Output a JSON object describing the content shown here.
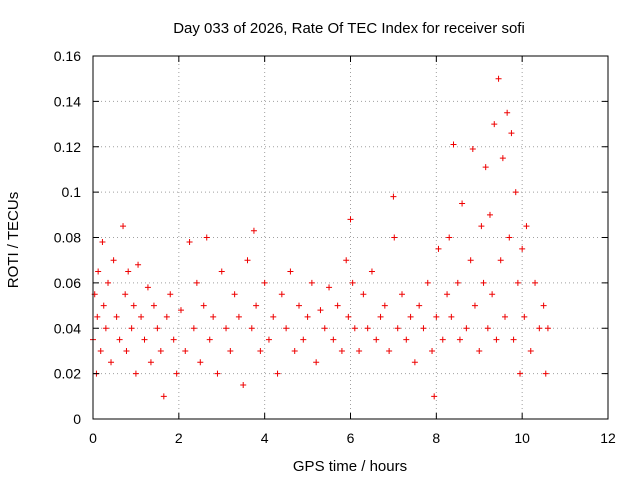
{
  "chart_data": {
    "type": "scatter",
    "title": "Day 033 of 2026, Rate Of TEC Index for receiver sofi",
    "xlabel": "GPS time / hours",
    "ylabel": "ROTI / TECUs",
    "xlim": [
      0,
      12
    ],
    "ylim": [
      0,
      0.16
    ],
    "xticks": [
      0,
      2,
      4,
      6,
      8,
      10,
      12
    ],
    "xtick_labels": [
      "0",
      "2",
      "4",
      "6",
      "8",
      "10",
      "12"
    ],
    "yticks": [
      0,
      0.02,
      0.04,
      0.06,
      0.08,
      0.1,
      0.12,
      0.14,
      0.16
    ],
    "ytick_labels": [
      "0",
      "0.02",
      "0.04",
      "0.06",
      "0.08",
      "0.1",
      "0.12",
      "0.14",
      "0.16"
    ],
    "grid": true,
    "marker": "plus",
    "color": "#ee0000",
    "series": [
      {
        "name": "ROTI",
        "x": [
          0.0,
          0.04,
          0.08,
          0.1,
          0.12,
          0.18,
          0.22,
          0.25,
          0.3,
          0.35,
          0.42,
          0.48,
          0.55,
          0.62,
          0.7,
          0.75,
          0.78,
          0.82,
          0.9,
          0.95,
          1.0,
          1.05,
          1.12,
          1.2,
          1.28,
          1.35,
          1.42,
          1.5,
          1.58,
          1.65,
          1.72,
          1.8,
          1.88,
          1.95,
          2.05,
          2.15,
          2.25,
          2.35,
          2.42,
          2.5,
          2.58,
          2.65,
          2.72,
          2.8,
          2.9,
          3.0,
          3.1,
          3.2,
          3.3,
          3.4,
          3.5,
          3.6,
          3.7,
          3.75,
          3.8,
          3.9,
          4.0,
          4.1,
          4.2,
          4.3,
          4.4,
          4.5,
          4.6,
          4.7,
          4.8,
          4.9,
          5.0,
          5.1,
          5.2,
          5.3,
          5.4,
          5.5,
          5.6,
          5.7,
          5.8,
          5.9,
          5.95,
          6.0,
          6.05,
          6.1,
          6.2,
          6.3,
          6.4,
          6.5,
          6.6,
          6.7,
          6.8,
          6.9,
          7.0,
          7.02,
          7.1,
          7.2,
          7.3,
          7.4,
          7.5,
          7.6,
          7.7,
          7.8,
          7.9,
          7.95,
          8.0,
          8.05,
          8.15,
          8.25,
          8.3,
          8.35,
          8.4,
          8.5,
          8.55,
          8.6,
          8.7,
          8.8,
          8.85,
          8.9,
          9.0,
          9.05,
          9.1,
          9.15,
          9.2,
          9.25,
          9.3,
          9.35,
          9.4,
          9.45,
          9.5,
          9.55,
          9.6,
          9.65,
          9.7,
          9.75,
          9.8,
          9.85,
          9.9,
          9.95,
          10.0,
          10.05,
          10.1,
          10.2,
          10.3,
          10.4,
          10.5,
          10.55,
          10.6
        ],
        "y": [
          0.035,
          0.055,
          0.02,
          0.045,
          0.065,
          0.03,
          0.078,
          0.05,
          0.04,
          0.06,
          0.025,
          0.07,
          0.045,
          0.035,
          0.085,
          0.055,
          0.03,
          0.065,
          0.04,
          0.05,
          0.02,
          0.068,
          0.045,
          0.035,
          0.058,
          0.025,
          0.05,
          0.04,
          0.03,
          0.01,
          0.045,
          0.055,
          0.035,
          0.02,
          0.048,
          0.03,
          0.078,
          0.04,
          0.06,
          0.025,
          0.05,
          0.08,
          0.035,
          0.045,
          0.02,
          0.065,
          0.04,
          0.03,
          0.055,
          0.045,
          0.015,
          0.07,
          0.04,
          0.083,
          0.05,
          0.03,
          0.06,
          0.035,
          0.045,
          0.02,
          0.055,
          0.04,
          0.065,
          0.03,
          0.05,
          0.035,
          0.045,
          0.06,
          0.025,
          0.048,
          0.04,
          0.058,
          0.035,
          0.05,
          0.03,
          0.07,
          0.045,
          0.088,
          0.06,
          0.04,
          0.03,
          0.055,
          0.04,
          0.065,
          0.035,
          0.045,
          0.05,
          0.03,
          0.098,
          0.08,
          0.04,
          0.055,
          0.035,
          0.045,
          0.025,
          0.05,
          0.04,
          0.06,
          0.03,
          0.01,
          0.045,
          0.075,
          0.035,
          0.055,
          0.08,
          0.045,
          0.121,
          0.06,
          0.035,
          0.095,
          0.04,
          0.07,
          0.119,
          0.05,
          0.03,
          0.085,
          0.06,
          0.111,
          0.04,
          0.09,
          0.055,
          0.13,
          0.035,
          0.15,
          0.07,
          0.115,
          0.045,
          0.135,
          0.08,
          0.126,
          0.035,
          0.1,
          0.06,
          0.02,
          0.075,
          0.045,
          0.085,
          0.03,
          0.06,
          0.04,
          0.05,
          0.02,
          0.04
        ]
      }
    ]
  }
}
